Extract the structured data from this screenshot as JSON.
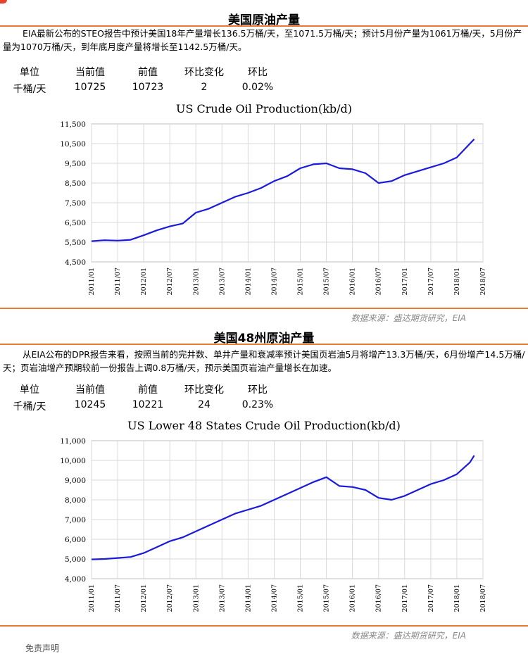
{
  "section1": {
    "title": "美国原油产量",
    "summary": "EIA最新公布的STEO报告中预计美国18年产量增长136.5万桶/天，至1071.5万桶/天；预计5月份产量为1061万桶/天，5月份产量为1070万桶/天，到年底月度产量将增长至1142.5万桶/天。",
    "table": {
      "headers": [
        "单位",
        "当前值",
        "前值",
        "环比变化",
        "环比"
      ],
      "row": [
        "千桶/天",
        "10725",
        "10723",
        "2",
        "0.02%"
      ]
    },
    "source": "数据来源：盛达期货研究，EIA"
  },
  "section2": {
    "title": "美国48州原油产量",
    "summary": "从EIA公布的DPR报告来看，按照当前的完井数、单井产量和衰减率预计美国页岩油5月将增产13.3万桶/天，6月份增产14.5万桶/天；页岩油增产预期较前一份报告上调0.8万桶/天，预示美国页岩油产量增长在加速。",
    "table": {
      "headers": [
        "单位",
        "当前值",
        "前值",
        "环比变化",
        "环比"
      ],
      "row": [
        "千桶/天",
        "10245",
        "10221",
        "24",
        "0.23%"
      ]
    },
    "source": "数据来源：盛达期货研究，EIA"
  },
  "footer": "免责声明",
  "colors": {
    "line": "#1a1adc",
    "rule": "#e87a2e",
    "grid": "#d9d9d9"
  },
  "chart_data": [
    {
      "type": "line",
      "title": "US Crude Oil Production(kb/d)",
      "x_ticks": [
        "2011/01",
        "2011/07",
        "2012/01",
        "2012/07",
        "2013/01",
        "2013/07",
        "2014/01",
        "2014/07",
        "2015/01",
        "2015/07",
        "2016/01",
        "2016/07",
        "2017/01",
        "2017/07",
        "2018/01",
        "2018/07"
      ],
      "y_ticks": [
        "4,500",
        "5,500",
        "6,500",
        "7,500",
        "8,500",
        "9,500",
        "10,500",
        "11,500"
      ],
      "ylim": [
        4500,
        11500
      ],
      "grid": true,
      "x": [
        "2011/01",
        "2011/04",
        "2011/07",
        "2011/10",
        "2012/01",
        "2012/04",
        "2012/07",
        "2012/10",
        "2013/01",
        "2013/04",
        "2013/07",
        "2013/10",
        "2014/01",
        "2014/04",
        "2014/07",
        "2014/10",
        "2015/01",
        "2015/04",
        "2015/07",
        "2015/10",
        "2016/01",
        "2016/04",
        "2016/07",
        "2016/10",
        "2017/01",
        "2017/04",
        "2017/07",
        "2017/10",
        "2018/01",
        "2018/04",
        "2018/05"
      ],
      "values": [
        5550,
        5600,
        5580,
        5620,
        5850,
        6100,
        6300,
        6450,
        7000,
        7200,
        7500,
        7800,
        8000,
        8250,
        8600,
        8850,
        9250,
        9450,
        9500,
        9250,
        9200,
        9000,
        8500,
        8600,
        8900,
        9100,
        9300,
        9500,
        9800,
        10500,
        10725
      ]
    },
    {
      "type": "line",
      "title": "US Lower 48 States Crude Oil Production(kb/d)",
      "x_ticks": [
        "2011/01",
        "2011/07",
        "2012/01",
        "2012/07",
        "2013/01",
        "2013/07",
        "2014/01",
        "2014/07",
        "2015/01",
        "2015/07",
        "2016/01",
        "2016/07",
        "2017/01",
        "2017/07",
        "2018/01",
        "2018/07"
      ],
      "y_ticks": [
        "4,000",
        "5,000",
        "6,000",
        "7,000",
        "8,000",
        "9,000",
        "10,000",
        "11,000"
      ],
      "ylim": [
        4000,
        11000
      ],
      "grid": true,
      "x": [
        "2011/01",
        "2011/04",
        "2011/07",
        "2011/10",
        "2012/01",
        "2012/04",
        "2012/07",
        "2012/10",
        "2013/01",
        "2013/04",
        "2013/07",
        "2013/10",
        "2014/01",
        "2014/04",
        "2014/07",
        "2014/10",
        "2015/01",
        "2015/04",
        "2015/07",
        "2015/10",
        "2016/01",
        "2016/04",
        "2016/07",
        "2016/10",
        "2017/01",
        "2017/04",
        "2017/07",
        "2017/10",
        "2018/01",
        "2018/04",
        "2018/05"
      ],
      "values": [
        4980,
        5000,
        5050,
        5100,
        5300,
        5600,
        5900,
        6100,
        6400,
        6700,
        7000,
        7300,
        7500,
        7700,
        8000,
        8300,
        8600,
        8900,
        9150,
        8700,
        8650,
        8500,
        8100,
        8000,
        8200,
        8500,
        8800,
        9000,
        9300,
        9900,
        10245
      ]
    }
  ]
}
